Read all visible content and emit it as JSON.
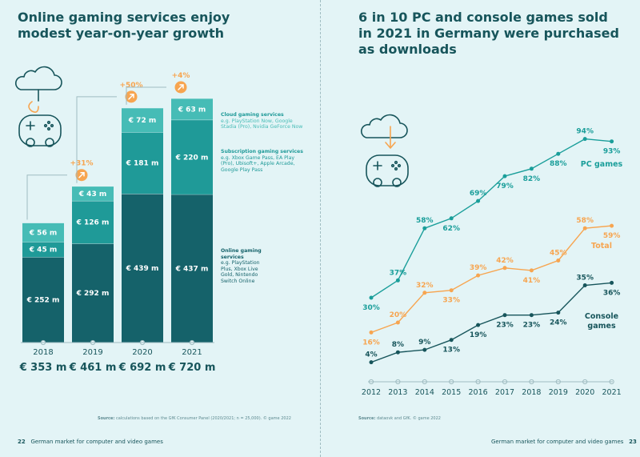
{
  "left_page": {
    "title_line1": "Online gaming services enjoy",
    "title_line2": "modest year-on-year growth",
    "source_label": "Source:",
    "source_text": "calculations based on the GfK Consumer Panel (2020/2021; n = 25,000). © game 2022",
    "page_number": "22",
    "footer_text": "German market for computer and video games"
  },
  "right_page": {
    "title_line1": "6 in 10 PC and console games sold",
    "title_line2": "in 2021 in Germany were purchased",
    "title_line3": "as downloads",
    "source_label": "Source:",
    "source_text": "dataovk and GfK. © game 2022",
    "page_number": "23",
    "footer_text": "German market for computer and video games"
  },
  "legend": {
    "cloud_title": "Cloud gaming services",
    "cloud_desc": "e.g. PlayStation Now, Google Stadia (Pro), Nvidia GeForce Now",
    "sub_title": "Subscription gaming services",
    "sub_desc": "e.g. Xbox Game Pass, EA Play (Pro), Ubisoft+, Apple Arcade, Google Play Pass",
    "online_title": "Online gaming services",
    "online_desc": "e.g. PlayStation Plus, Xbox Live Gold, Nintendo Switch Online"
  },
  "colors": {
    "background": "#e3f4f6",
    "dark_teal": "#17555b",
    "online": "#15626a",
    "subscription": "#1f9a98",
    "cloud": "#46bcb6",
    "pc_line": "#1a9e9a",
    "total_line": "#f7a550",
    "console_line": "#17555b",
    "accent_orange": "#f7a550"
  },
  "chart_data": [
    {
      "type": "bar",
      "stacked": true,
      "unit_prefix": "€",
      "unit_suffix": "m",
      "categories": [
        "2018",
        "2019",
        "2020",
        "2021"
      ],
      "series": [
        {
          "name": "Online gaming services",
          "values": [
            252,
            292,
            439,
            437
          ]
        },
        {
          "name": "Subscription gaming services",
          "values": [
            45,
            126,
            181,
            220
          ]
        },
        {
          "name": "Cloud gaming services",
          "values": [
            56,
            43,
            72,
            63
          ]
        }
      ],
      "totals": [
        353,
        461,
        692,
        720
      ],
      "growth_labels": [
        "",
        "+31%",
        "+50%",
        "+4%"
      ]
    },
    {
      "type": "line",
      "x": [
        "2012",
        "2013",
        "2014",
        "2015",
        "2016",
        "2017",
        "2018",
        "2019",
        "2020",
        "2021"
      ],
      "series": [
        {
          "name": "PC games",
          "values": [
            30,
            37,
            58,
            62,
            69,
            79,
            82,
            88,
            94,
            93
          ]
        },
        {
          "name": "Total",
          "values": [
            16,
            20,
            32,
            33,
            39,
            42,
            41,
            45,
            58,
            59
          ]
        },
        {
          "name": "Console games",
          "values": [
            4,
            8,
            9,
            13,
            19,
            23,
            23,
            24,
            35,
            36
          ]
        }
      ],
      "value_suffix": "%"
    }
  ]
}
